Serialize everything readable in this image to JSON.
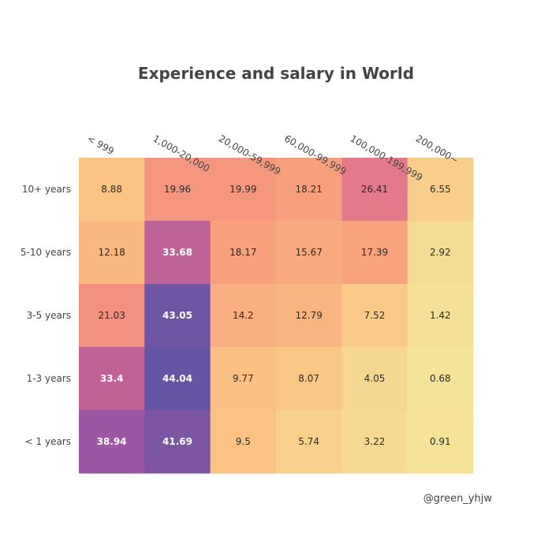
{
  "chart_data": {
    "type": "heatmap",
    "title": "Experience and salary in World",
    "x_categories": [
      "< 999",
      "1,000-20,000",
      "20,000-59,999",
      "60,000-99,999",
      "100,000-199,999",
      "200,000~"
    ],
    "y_categories": [
      "10+ years",
      "5-10 years",
      "3-5 years",
      "1-3 years",
      "< 1 years"
    ],
    "x_axis_side": "top",
    "x_tick_angle": 30,
    "values": [
      [
        8.88,
        19.96,
        19.99,
        18.21,
        26.41,
        6.55
      ],
      [
        12.18,
        33.68,
        18.17,
        15.67,
        17.39,
        2.92
      ],
      [
        21.03,
        43.05,
        14.2,
        12.79,
        7.52,
        1.42
      ],
      [
        33.4,
        44.04,
        9.77,
        8.07,
        4.05,
        0.68
      ],
      [
        38.94,
        41.69,
        9.5,
        5.74,
        3.22,
        0.91
      ]
    ],
    "value_labels": [
      [
        "8.88",
        "19.96",
        "19.99",
        "18.21",
        "26.41",
        "6.55"
      ],
      [
        "12.18",
        "33.68",
        "18.17",
        "15.67",
        "17.39",
        "2.92"
      ],
      [
        "21.03",
        "43.05",
        "14.2",
        "12.79",
        "7.52",
        "1.42"
      ],
      [
        "33.4",
        "44.04",
        "9.77",
        "8.07",
        "4.05",
        "0.68"
      ],
      [
        "38.94",
        "41.69",
        "9.5",
        "5.74",
        "3.22",
        "0.91"
      ]
    ],
    "colorscale": "sunsetdark-reversed",
    "colorscale_stops": [
      [
        0.0,
        "#f3e79b"
      ],
      [
        0.2,
        "#fac484"
      ],
      [
        0.4,
        "#f8a07e"
      ],
      [
        0.55,
        "#eb7f86"
      ],
      [
        0.7,
        "#ce6693"
      ],
      [
        0.85,
        "#a059a0"
      ],
      [
        1.0,
        "#5c53a5"
      ]
    ],
    "zmin": 0,
    "zmax": 45,
    "colorbar": false,
    "grid": false,
    "legend": "none"
  },
  "watermark": "@green_yhjw"
}
